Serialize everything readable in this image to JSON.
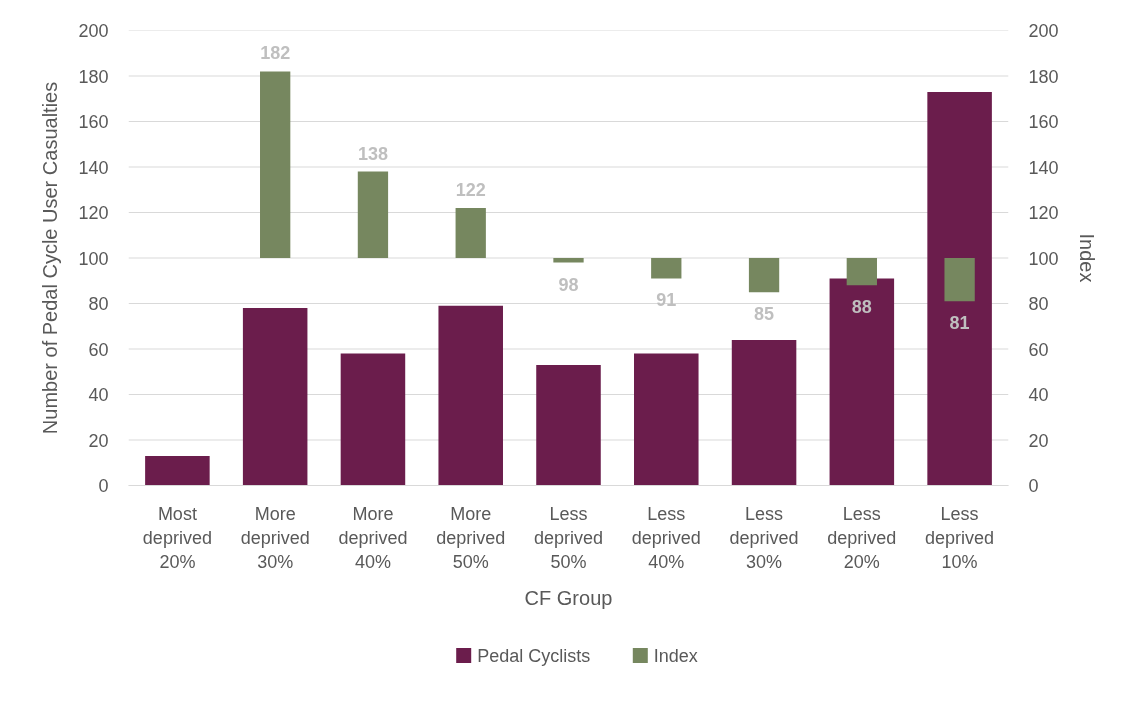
{
  "chart_data": {
    "type": "bar",
    "xlabel": "CF Group",
    "ylabel": "Number of Pedal Cycle User Casualties",
    "y2label": "Index",
    "categories": [
      "Most deprived 20%",
      "More deprived 30%",
      "More deprived 40%",
      "More deprived 50%",
      "Less deprived 50%",
      "Less deprived 40%",
      "Less deprived 30%",
      "Less deprived 20%",
      "Less deprived 10%"
    ],
    "series": [
      {
        "name": "Pedal Cyclists",
        "color": "#6b1d4c",
        "values": [
          13,
          78,
          58,
          79,
          53,
          58,
          64,
          91,
          173
        ]
      },
      {
        "name": "Index",
        "color": "#76875f",
        "axis": "y2",
        "base": [
          null,
          100,
          100,
          100,
          100,
          100,
          100,
          100,
          100
        ],
        "values": [
          null,
          82,
          38,
          22,
          -2,
          -9,
          -15,
          -12,
          -19
        ],
        "value_labels": [
          null,
          "182",
          "138",
          "122",
          "98",
          "91",
          "85",
          "88",
          "81"
        ]
      }
    ],
    "ylim": [
      0,
      200
    ],
    "yticks": [
      0,
      20,
      40,
      60,
      80,
      100,
      120,
      140,
      160,
      180,
      200
    ],
    "y2lim": [
      0,
      200
    ],
    "y2ticks": [
      0,
      20,
      40,
      60,
      80,
      100,
      120,
      140,
      160,
      180,
      200
    ],
    "grid": "y",
    "legend": "bottom"
  }
}
